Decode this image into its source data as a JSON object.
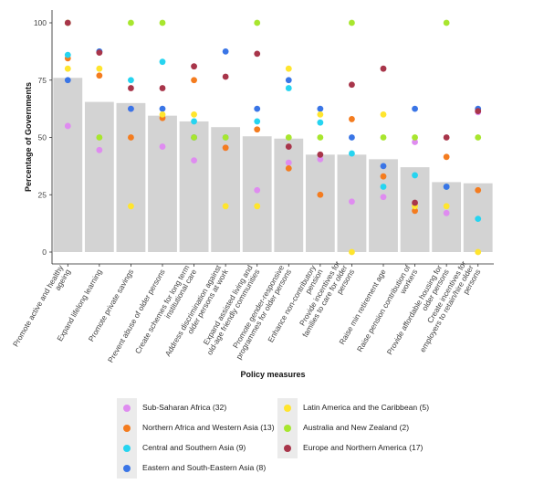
{
  "chart_data": {
    "type": "bar",
    "ylabel": "Percentage of Governments",
    "xlabel": "Policy measures",
    "ylim": [
      0,
      105
    ],
    "yticks": [
      0,
      25,
      50,
      75,
      100
    ],
    "grid": false,
    "legend_position": "bottom",
    "categories": [
      "Promote active and healthy ageing",
      "Expand lifelong learning",
      "Promote private savings",
      "Prevent abuse of older persons",
      "Create schemes for long term institutional care",
      "Address discrimination against older persons at work",
      "Expand assisted living and old-age friendly communities",
      "Promote gender-responsive programmes for older persons",
      "Enhance non-contributory pension",
      "Provide incentives for families to care for older persons",
      "Raise min retirement age",
      "Raise pension contribution of workers",
      "Provide affordable housing for older persons",
      "Create incentives for employers to retain/hire older persons"
    ],
    "bar_values": [
      76,
      65.5,
      65,
      59.5,
      57,
      54.5,
      50.5,
      49.5,
      42.5,
      42.5,
      40.5,
      37,
      30.5,
      30
    ],
    "bar_color": "#d3d3d3",
    "series": [
      {
        "name": "Sub-Saharan Africa (32)",
        "color": "#df8cf0",
        "values": [
          55,
          44.5,
          62.5,
          46,
          40,
          45.5,
          27,
          39,
          40.5,
          22,
          24,
          48,
          17,
          61
        ]
      },
      {
        "name": "Northern Africa and Western Asia (13)",
        "color": "#f47c1f",
        "values": [
          84.5,
          77,
          50,
          58.5,
          75,
          45.5,
          53.5,
          36.5,
          25,
          58,
          33,
          18,
          41.5,
          27
        ]
      },
      {
        "name": "Central and Southern Asia (9)",
        "color": "#26d4f0",
        "values": [
          86,
          87.5,
          75,
          83,
          57,
          50,
          57,
          71.5,
          56.5,
          43,
          28.5,
          33.5,
          28.5,
          14.5
        ]
      },
      {
        "name": "Eastern and South-Eastern Asia (8)",
        "color": "#3a75e6",
        "values": [
          75,
          87.5,
          62.5,
          62.5,
          50,
          87.5,
          62.5,
          75,
          62.5,
          50,
          37.5,
          62.5,
          28.5,
          62.5
        ]
      },
      {
        "name": "Latin America and the Caribbean (5)",
        "color": "#ffe52e",
        "values": [
          80,
          80,
          20,
          60,
          60,
          20,
          20,
          80,
          60,
          0,
          60,
          20,
          20,
          0
        ]
      },
      {
        "name": "Australia and New Zealand (2)",
        "color": "#a8e62e",
        "values": [
          100,
          50,
          100,
          100,
          50,
          50,
          100,
          50,
          50,
          100,
          50,
          50,
          100,
          50
        ]
      },
      {
        "name": "Europe and Northern America (17)",
        "color": "#a8354a",
        "values": [
          100,
          87,
          71.5,
          71.5,
          81,
          76.5,
          86.5,
          46,
          42.5,
          73,
          80,
          21.5,
          50,
          61.5
        ]
      }
    ]
  }
}
